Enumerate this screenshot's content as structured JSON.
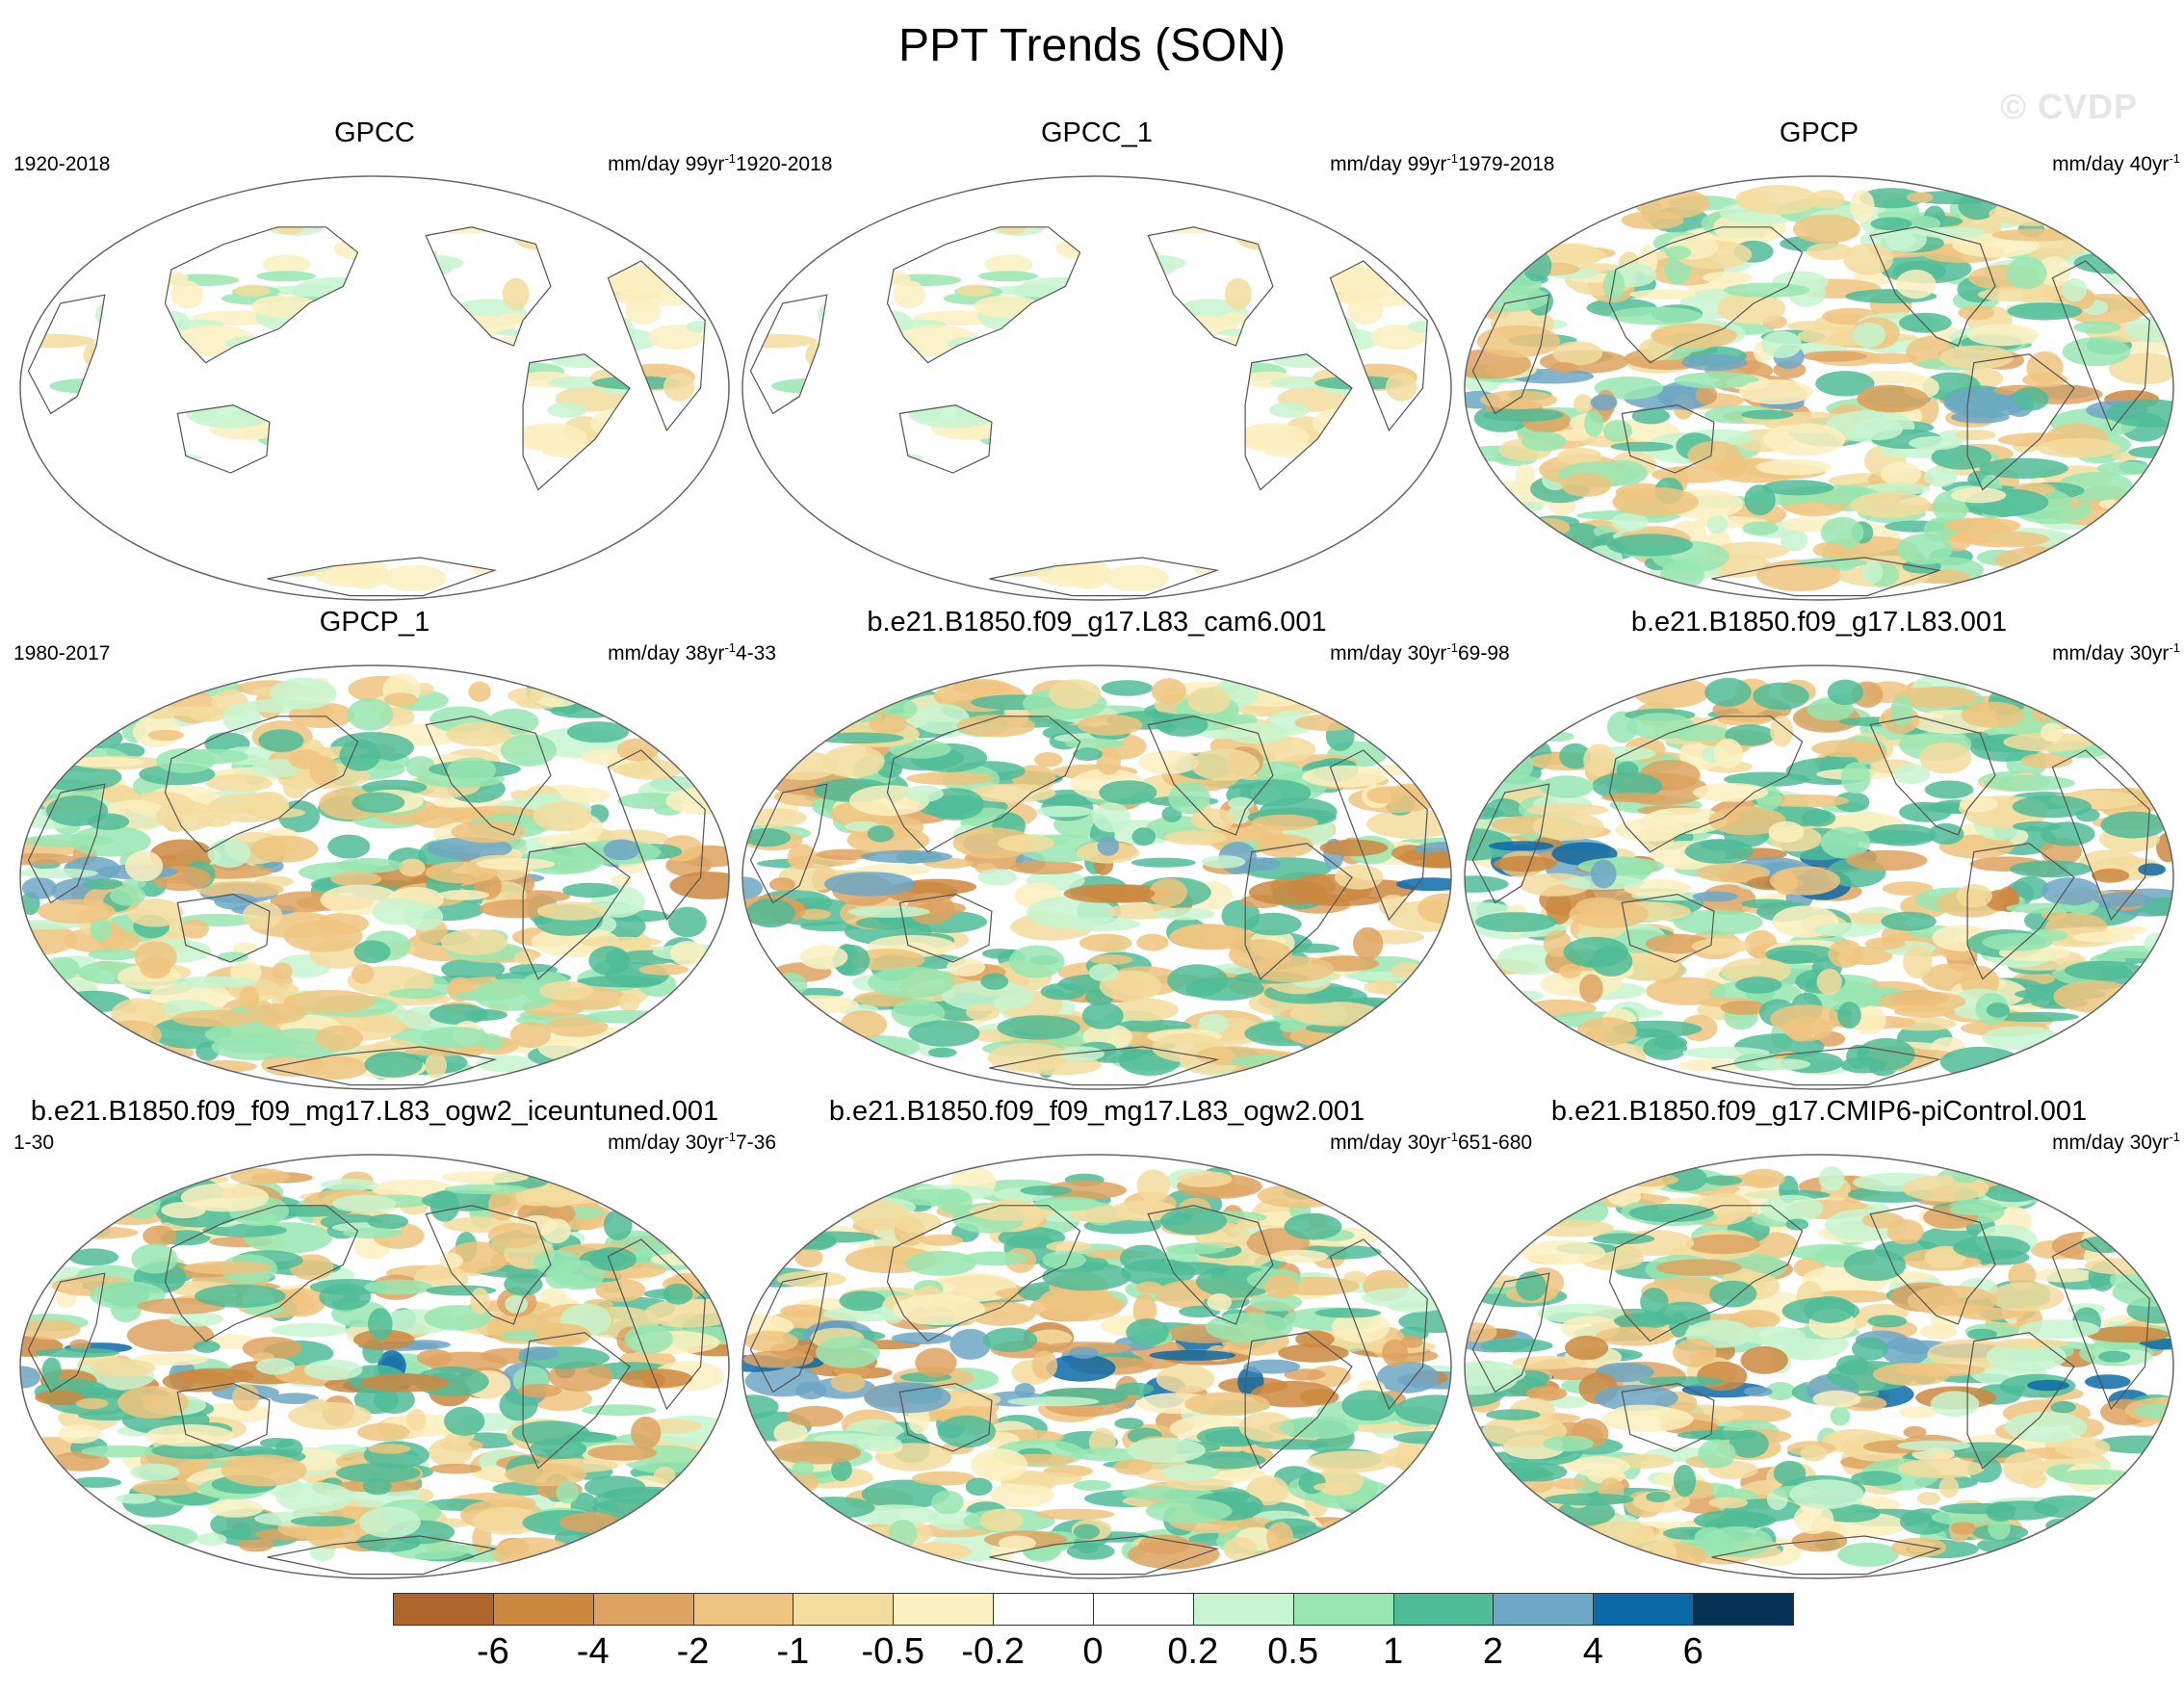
{
  "title": "PPT Trends (SON)",
  "watermark": "© CVDP",
  "panels": [
    {
      "title": "GPCC",
      "period": "1920-2018",
      "units_base": "mm/day 99yr",
      "units_exp": "-1",
      "seed": 11,
      "amp": 0.35,
      "coverage": "land"
    },
    {
      "title": "GPCC_1",
      "period": "1920-2018",
      "units_base": "mm/day 99yr",
      "units_exp": "-1",
      "seed": 11,
      "amp": 0.35,
      "coverage": "land"
    },
    {
      "title": "GPCP",
      "period": "1979-2018",
      "units_base": "mm/day 40yr",
      "units_exp": "-1",
      "seed": 23,
      "amp": 0.8,
      "coverage": "global"
    },
    {
      "title": "GPCP_1",
      "period": "1980-2017",
      "units_base": "mm/day 38yr",
      "units_exp": "-1",
      "seed": 29,
      "amp": 0.8,
      "coverage": "global"
    },
    {
      "title": "b.e21.B1850.f09_g17.L83_cam6.001",
      "period": "4-33",
      "units_base": "mm/day 30yr",
      "units_exp": "-1",
      "seed": 37,
      "amp": 1.0,
      "coverage": "global"
    },
    {
      "title": "b.e21.B1850.f09_g17.L83.001",
      "period": "69-98",
      "units_base": "mm/day 30yr",
      "units_exp": "-1",
      "seed": 41,
      "amp": 1.0,
      "coverage": "global"
    },
    {
      "title": "b.e21.B1850.f09_f09_mg17.L83_ogw2_iceuntuned.001",
      "period": "1-30",
      "units_base": "mm/day 30yr",
      "units_exp": "-1",
      "seed": 53,
      "amp": 1.0,
      "coverage": "global"
    },
    {
      "title": "b.e21.B1850.f09_f09_mg17.L83_ogw2.001",
      "period": "7-36",
      "units_base": "mm/day 30yr",
      "units_exp": "-1",
      "seed": 61,
      "amp": 1.0,
      "coverage": "global"
    },
    {
      "title": "b.e21.B1850.f09_g17.CMIP6-piControl.001",
      "period": "651-680",
      "units_base": "mm/day 30yr",
      "units_exp": "-1",
      "seed": 71,
      "amp": 1.0,
      "coverage": "global"
    }
  ],
  "colorbar": {
    "levels": [
      "-6",
      "-4",
      "-2",
      "-1",
      "-0.5",
      "-0.2",
      "0",
      "0.2",
      "0.5",
      "1",
      "2",
      "4",
      "6"
    ],
    "colors": [
      "#b0662a",
      "#cd8840",
      "#dea360",
      "#efc47f",
      "#f3dc9d",
      "#fbf0c0",
      "#ffffff",
      "#ffffff",
      "#c7f5cf",
      "#98e6b2",
      "#4fbc98",
      "#6da7c6",
      "#0a6aa8",
      "#053356"
    ]
  }
}
